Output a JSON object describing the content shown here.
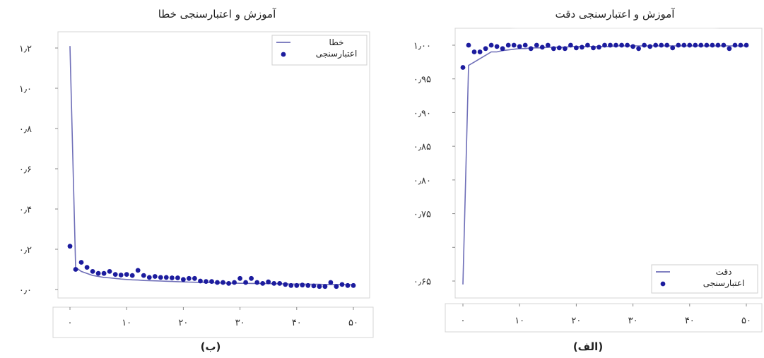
{
  "charts": [
    {
      "id": "loss",
      "panel_label": "(ب)",
      "chart_data": {
        "type": "line",
        "title": "آموزش و اعتبارسنجی خطا",
        "xlabel": "",
        "ylabel": "",
        "xlim": [
          -2,
          50
        ],
        "ylim": [
          -0.02,
          1.26
        ],
        "grid": false,
        "legend": {
          "placement": "top-right",
          "entries": [
            "خطا",
            "اعتبارسنجی"
          ]
        },
        "x_ticks": [
          0,
          10,
          20,
          30,
          40,
          50
        ],
        "x_tick_labels": [
          "۰",
          "۱۰",
          "۲۰",
          "۳۰",
          "۴۰",
          "۵۰"
        ],
        "y_ticks": [
          0.0,
          0.2,
          0.4,
          0.6,
          0.8,
          1.0,
          1.2
        ],
        "y_tick_labels": [
          "۰٫۰",
          "۰٫۲",
          "۰٫۴",
          "۰٫۶",
          "۰٫۸",
          "۱٫۰",
          "۱٫۲"
        ],
        "series": [
          {
            "name": "خطا",
            "style": "line",
            "color": "#6f6fb8",
            "x": [
              0,
              1,
              2,
              3,
              4,
              5,
              6,
              7,
              8,
              9,
              10,
              11,
              12,
              13,
              14,
              15,
              16,
              17,
              18,
              19,
              20,
              21,
              22,
              23,
              24,
              25,
              26,
              27,
              28,
              29,
              30,
              31,
              32,
              33,
              34,
              35,
              36,
              37,
              38,
              39,
              40,
              41,
              42,
              43,
              44,
              45,
              46,
              47,
              48,
              49,
              50
            ],
            "values": [
              1.21,
              0.11,
              0.09,
              0.08,
              0.07,
              0.065,
              0.06,
              0.058,
              0.055,
              0.052,
              0.05,
              0.048,
              0.047,
              0.045,
              0.044,
              0.043,
              0.042,
              0.041,
              0.04,
              0.039,
              0.038,
              0.037,
              0.036,
              0.035,
              0.035,
              0.034,
              0.033,
              0.033,
              0.032,
              0.032,
              0.031,
              0.031,
              0.03,
              0.03,
              0.03,
              0.029,
              0.029,
              0.028,
              0.028,
              0.027,
              0.027,
              0.027,
              0.026,
              0.026,
              0.026,
              0.025,
              0.025,
              0.025,
              0.024,
              0.024,
              0.024
            ]
          },
          {
            "name": "اعتبارسنجی",
            "style": "scatter",
            "color": "#1c1c9e",
            "x": [
              0,
              1,
              2,
              3,
              4,
              5,
              6,
              7,
              8,
              9,
              10,
              11,
              12,
              13,
              14,
              15,
              16,
              17,
              18,
              19,
              20,
              21,
              22,
              23,
              24,
              25,
              26,
              27,
              28,
              29,
              30,
              31,
              32,
              33,
              34,
              35,
              36,
              37,
              38,
              39,
              40,
              41,
              42,
              43,
              44,
              45,
              46,
              47,
              48,
              49,
              50
            ],
            "values": [
              0.215,
              0.1,
              0.135,
              0.11,
              0.09,
              0.08,
              0.08,
              0.09,
              0.075,
              0.072,
              0.075,
              0.07,
              0.095,
              0.07,
              0.06,
              0.065,
              0.06,
              0.06,
              0.058,
              0.058,
              0.05,
              0.055,
              0.055,
              0.042,
              0.04,
              0.04,
              0.035,
              0.035,
              0.03,
              0.035,
              0.055,
              0.035,
              0.055,
              0.035,
              0.03,
              0.038,
              0.03,
              0.03,
              0.025,
              0.02,
              0.02,
              0.022,
              0.02,
              0.018,
              0.015,
              0.015,
              0.035,
              0.015,
              0.025,
              0.02,
              0.02
            ]
          }
        ]
      }
    },
    {
      "id": "accuracy",
      "panel_label": "(الف)",
      "chart_data": {
        "type": "line",
        "title": "آموزش و اعتبارسنجی دقت",
        "xlabel": "",
        "ylabel": "",
        "xlim": [
          -2,
          50
        ],
        "ylim": [
          0.64,
          1.01
        ],
        "grid": false,
        "legend": {
          "placement": "bottom-right",
          "entries": [
            "دقت",
            "اعتبارسنجی"
          ]
        },
        "x_ticks": [
          0,
          10,
          20,
          30,
          40,
          50
        ],
        "x_tick_labels": [
          "۰",
          "۱۰",
          "۲۰",
          "۳۰",
          "۴۰",
          "۵۰"
        ],
        "y_ticks": [
          0.65,
          0.75,
          0.8,
          0.85,
          0.9,
          0.95,
          1.0
        ],
        "y_tick_labels": [
          "۰٫۶۵",
          "۰٫۷۵",
          "۰٫۸۰",
          "۰٫۸۵",
          "۰٫۹۰",
          "۰٫۹۵",
          "۱٫۰۰"
        ],
        "y_tick_positions": [
          0.65,
          0.7,
          0.75,
          0.8,
          0.85,
          0.9,
          0.95,
          1.0
        ],
        "series": [
          {
            "name": "دقت",
            "style": "line",
            "color": "#6f6fb8",
            "x": [
              0,
              1,
              2,
              3,
              4,
              5,
              6,
              7,
              8,
              9,
              10,
              11,
              12,
              13,
              14,
              15,
              16,
              17,
              18,
              19,
              20,
              21,
              22,
              23,
              24,
              25,
              26,
              27,
              28,
              29,
              30,
              31,
              32,
              33,
              34,
              35,
              36,
              37,
              38,
              39,
              40,
              41,
              42,
              43,
              44,
              45,
              46,
              47,
              48,
              49,
              50
            ],
            "values": [
              0.645,
              0.97,
              0.975,
              0.98,
              0.985,
              0.99,
              0.99,
              0.992,
              0.993,
              0.994,
              0.995,
              0.995,
              0.996,
              0.996,
              0.996,
              0.997,
              0.997,
              0.997,
              0.997,
              0.998,
              0.998,
              0.998,
              0.998,
              0.998,
              0.998,
              0.998,
              0.998,
              0.999,
              0.999,
              0.999,
              0.999,
              0.999,
              0.999,
              0.999,
              0.999,
              0.999,
              0.999,
              0.999,
              0.999,
              0.999,
              0.999,
              0.999,
              0.999,
              0.999,
              0.999,
              0.999,
              0.999,
              0.999,
              0.999,
              0.999,
              0.999
            ]
          },
          {
            "name": "اعتبارسنجی",
            "style": "scatter",
            "color": "#1c1c9e",
            "x": [
              0,
              1,
              2,
              3,
              4,
              5,
              6,
              7,
              8,
              9,
              10,
              11,
              12,
              13,
              14,
              15,
              16,
              17,
              18,
              19,
              20,
              21,
              22,
              23,
              24,
              25,
              26,
              27,
              28,
              29,
              30,
              31,
              32,
              33,
              34,
              35,
              36,
              37,
              38,
              39,
              40,
              41,
              42,
              43,
              44,
              45,
              46,
              47,
              48,
              49,
              50
            ],
            "values": [
              0.967,
              1.0,
              0.99,
              0.99,
              0.995,
              1.0,
              0.998,
              0.995,
              1.0,
              1.0,
              0.998,
              1.0,
              0.995,
              1.0,
              0.997,
              1.0,
              0.995,
              0.996,
              0.995,
              1.0,
              0.996,
              0.997,
              1.0,
              0.996,
              0.997,
              1.0,
              1.0,
              1.0,
              1.0,
              1.0,
              0.998,
              0.995,
              1.0,
              0.998,
              1.0,
              1.0,
              1.0,
              0.996,
              1.0,
              1.0,
              1.0,
              1.0,
              1.0,
              1.0,
              1.0,
              1.0,
              1.0,
              0.995,
              1.0,
              1.0,
              1.0
            ]
          }
        ]
      }
    }
  ]
}
